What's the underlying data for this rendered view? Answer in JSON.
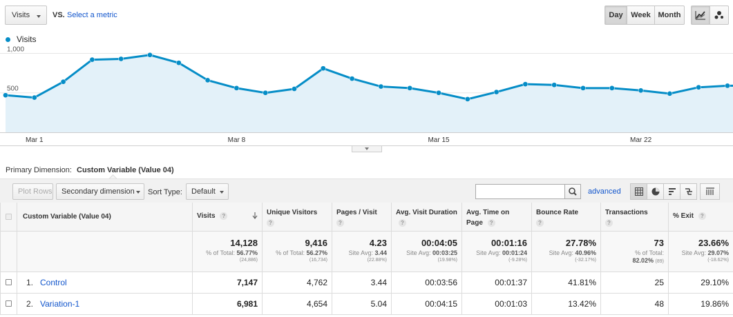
{
  "controls": {
    "metric": "Visits",
    "vs": "VS.",
    "select_metric": "Select a metric",
    "day": "Day",
    "week": "Week",
    "month": "Month",
    "line_icon": "line-chart-icon",
    "motion_icon": "motion-chart-icon"
  },
  "legend": {
    "label": "Visits",
    "color": "#058dc7"
  },
  "chart_data": {
    "type": "area",
    "series": [
      {
        "name": "Visits",
        "values": [
          470,
          440,
          640,
          920,
          930,
          980,
          880,
          660,
          560,
          500,
          550,
          810,
          680,
          580,
          560,
          500,
          420,
          510,
          610,
          600,
          560,
          560,
          530,
          490,
          570,
          590
        ]
      }
    ],
    "x": [
      "Feb 28",
      "Mar 1",
      "Mar 2",
      "Mar 3",
      "Mar 4",
      "Mar 5",
      "Mar 6",
      "Mar 7",
      "Mar 8",
      "Mar 9",
      "Mar 10",
      "Mar 11",
      "Mar 12",
      "Mar 13",
      "Mar 14",
      "Mar 15",
      "Mar 16",
      "Mar 17",
      "Mar 18",
      "Mar 19",
      "Mar 20",
      "Mar 21",
      "Mar 22",
      "Mar 23",
      "Mar 24",
      "Mar 25"
    ],
    "xtick_labels": [
      "Mar 1",
      "Mar 8",
      "Mar 15",
      "Mar 22"
    ],
    "ytick_labels": [
      "1,000",
      "500"
    ],
    "ylim": [
      0,
      1100
    ],
    "line_color": "#058dc7",
    "fill_color": "#e3f1f9",
    "grid": true
  },
  "dimension": {
    "label": "Primary Dimension:",
    "value": "Custom Variable (Value 04)"
  },
  "toolbar": {
    "plot_rows": "Plot Rows",
    "secondary_dimension": "Secondary dimension",
    "sort_type_label": "Sort Type:",
    "sort_type_value": "Default",
    "search_placeholder": "",
    "advanced": "advanced"
  },
  "table": {
    "headers": {
      "cv": "Custom Variable (Value 04)",
      "visits": "Visits",
      "unique": "Unique Visitors",
      "pages": "Pages / Visit",
      "avg_visit_duration": "Avg. Visit Duration",
      "avg_time_on_page": "Avg. Time on Page",
      "bounce": "Bounce Rate",
      "transactions": "Transactions",
      "exit": "% Exit"
    },
    "totals": {
      "visits": {
        "value": "14,128",
        "sub_label": "% of Total:",
        "sub_value": "56.77%",
        "tiny": "(24,886)"
      },
      "unique": {
        "value": "9,416",
        "sub_label": "% of Total:",
        "sub_value": "56.27%",
        "tiny": "(16,734)"
      },
      "pages": {
        "value": "4.23",
        "sub_label": "Site Avg:",
        "sub_value": "3.44",
        "tiny": "(22.88%)"
      },
      "avg_visit_duration": {
        "value": "00:04:05",
        "sub_label": "Site Avg:",
        "sub_value": "00:03:25",
        "tiny": "(19.98%)"
      },
      "avg_time_on_page": {
        "value": "00:01:16",
        "sub_label": "Site Avg:",
        "sub_value": "00:01:24",
        "tiny": "(-9.28%)"
      },
      "bounce": {
        "value": "27.78%",
        "sub_label": "Site Avg:",
        "sub_value": "40.96%",
        "tiny": "(-32.17%)"
      },
      "transactions": {
        "value": "73",
        "sub_label": "% of Total:",
        "sub_value": "82.02%",
        "tiny": "(89)"
      },
      "exit": {
        "value": "23.66%",
        "sub_label": "Site Avg:",
        "sub_value": "29.07%",
        "tiny": "(-18.62%)"
      }
    },
    "rows": [
      {
        "idx": "1.",
        "name": "Control",
        "visits": "7,147",
        "unique": "4,762",
        "pages": "3.44",
        "avd": "00:03:56",
        "atp": "00:01:37",
        "bounce": "41.81%",
        "transactions": "25",
        "exit": "29.10%"
      },
      {
        "idx": "2.",
        "name": "Variation-1",
        "visits": "6,981",
        "unique": "4,654",
        "pages": "5.04",
        "avd": "00:04:15",
        "atp": "00:01:03",
        "bounce": "13.42%",
        "transactions": "48",
        "exit": "19.86%"
      }
    ]
  }
}
